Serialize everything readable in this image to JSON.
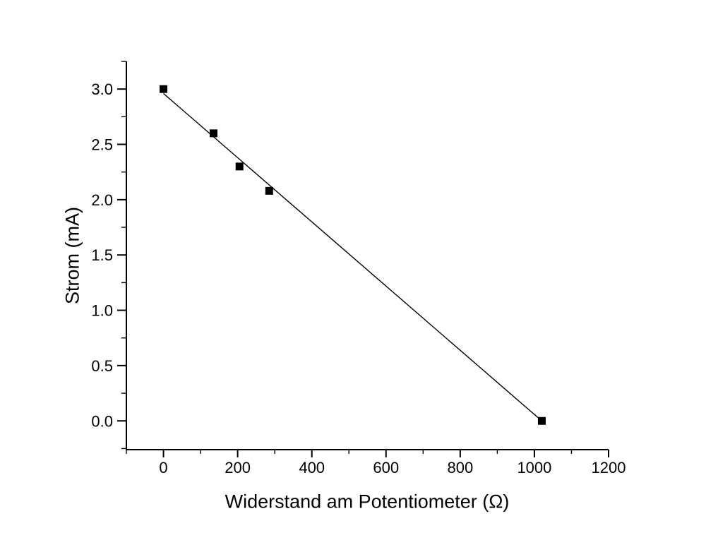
{
  "chart_data": {
    "type": "scatter",
    "title": "",
    "xlabel": "Widerstand am Potentiometer (Ω)",
    "ylabel": "Strom (mA)",
    "x": [
      0,
      135,
      205,
      285,
      1020
    ],
    "y": [
      3.0,
      2.6,
      2.3,
      2.08,
      0.0
    ],
    "fit_line": {
      "x": [
        0,
        1020
      ],
      "y": [
        2.96,
        0.0
      ]
    },
    "xlim": [
      -100,
      1200
    ],
    "ylim": [
      -0.26,
      3.25
    ],
    "x_major_ticks": [
      0,
      200,
      400,
      600,
      800,
      1000,
      1200
    ],
    "x_tick_labels": [
      "0",
      "200",
      "400",
      "600",
      "800",
      "1000",
      "1200"
    ],
    "x_minor_ticks": [
      -100,
      100,
      300,
      500,
      700,
      900,
      1100
    ],
    "y_major_ticks": [
      0.0,
      0.5,
      1.0,
      1.5,
      2.0,
      2.5,
      3.0
    ],
    "y_tick_labels": [
      "0.0",
      "0.5",
      "1.0",
      "1.5",
      "2.0",
      "2.5",
      "3.0"
    ],
    "y_minor_ticks": [
      -0.25,
      0.25,
      0.75,
      1.25,
      1.75,
      2.25,
      2.75,
      3.25
    ],
    "marker": "square",
    "marker_color": "#000000",
    "line_color": "#000000",
    "axis_color": "#000000",
    "tick_label_color": "#000000",
    "background": "#ffffff",
    "grid": false,
    "legend": null
  }
}
